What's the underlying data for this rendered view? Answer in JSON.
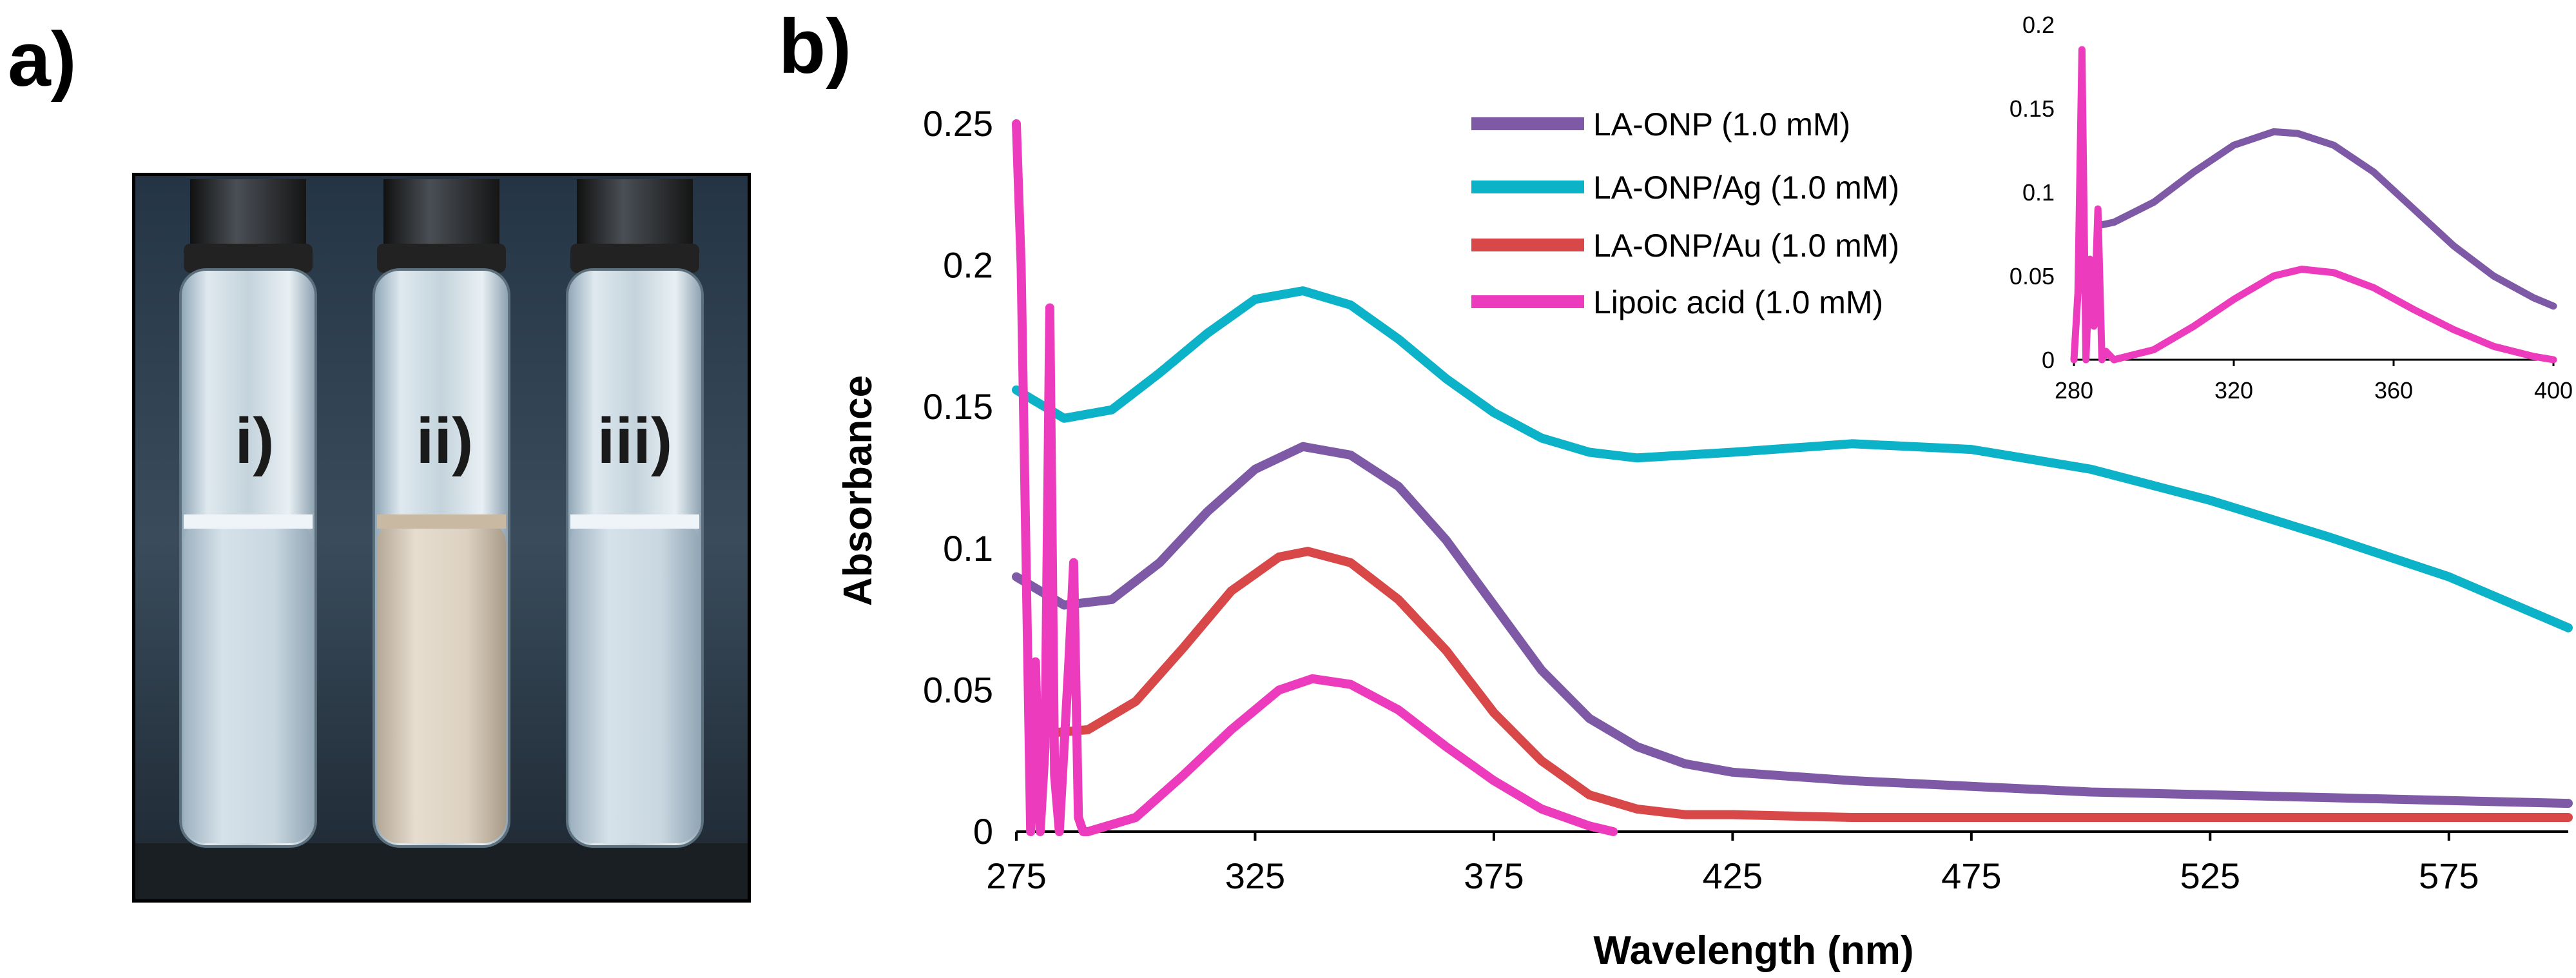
{
  "panel_a": {
    "label": "a)",
    "vials": [
      {
        "label": "i)"
      },
      {
        "label": "ii)"
      },
      {
        "label": "iii)"
      }
    ]
  },
  "panel_b": {
    "label": "b)"
  },
  "colors": {
    "LA-ONP": "#7e5aa6",
    "LA-ONP/Ag": "#0cb2c8",
    "LA-ONP/Au": "#d94848",
    "Lipoic acid": "#ec3bbd"
  },
  "chart_data": [
    {
      "type": "line",
      "title": "",
      "xlabel": "Wavelength (nm)",
      "ylabel": "Absorbance",
      "xlim": [
        275,
        600
      ],
      "ylim": [
        0,
        0.25
      ],
      "x_ticks": [
        "275",
        "325",
        "375",
        "425",
        "475",
        "525",
        "575"
      ],
      "y_ticks": [
        "0",
        "0.05",
        "0.1",
        "0.15",
        "0.2",
        "0.25"
      ],
      "legend": [
        "LA-ONP (1.0 mM)",
        "LA-ONP/Ag (1.0 mM)",
        "LA-ONP/Au  (1.0 mM)",
        "Lipoic acid (1.0 mM)"
      ],
      "legend_position": "top-center",
      "series": [
        {
          "name": "LA-ONP (1.0 mM)",
          "key": "LA-ONP",
          "x": [
            275,
            285,
            295,
            305,
            315,
            325,
            335,
            345,
            355,
            365,
            375,
            385,
            395,
            405,
            415,
            425,
            450,
            475,
            500,
            525,
            550,
            575,
            600
          ],
          "y": [
            0.09,
            0.08,
            0.082,
            0.095,
            0.113,
            0.128,
            0.136,
            0.133,
            0.122,
            0.103,
            0.08,
            0.057,
            0.04,
            0.03,
            0.024,
            0.021,
            0.018,
            0.016,
            0.014,
            0.013,
            0.012,
            0.011,
            0.01
          ]
        },
        {
          "name": "LA-ONP/Ag (1.0 mM)",
          "key": "LA-ONP/Ag",
          "x": [
            275,
            285,
            295,
            305,
            315,
            325,
            335,
            345,
            355,
            365,
            375,
            385,
            395,
            405,
            415,
            425,
            450,
            475,
            500,
            525,
            550,
            575,
            600
          ],
          "y": [
            0.156,
            0.146,
            0.149,
            0.162,
            0.176,
            0.188,
            0.191,
            0.186,
            0.174,
            0.16,
            0.148,
            0.139,
            0.134,
            0.132,
            0.133,
            0.134,
            0.137,
            0.135,
            0.128,
            0.117,
            0.104,
            0.09,
            0.072
          ]
        },
        {
          "name": "LA-ONP/Au  (1.0 mM)",
          "key": "LA-ONP/Au",
          "x": [
            283,
            290,
            300,
            310,
            320,
            330,
            336,
            345,
            355,
            365,
            375,
            385,
            395,
            405,
            415,
            425,
            450,
            475,
            500,
            525,
            550,
            575,
            600
          ],
          "y": [
            0.035,
            0.036,
            0.046,
            0.065,
            0.085,
            0.097,
            0.099,
            0.095,
            0.082,
            0.064,
            0.042,
            0.025,
            0.013,
            0.008,
            0.006,
            0.006,
            0.005,
            0.005,
            0.005,
            0.005,
            0.005,
            0.005,
            0.005
          ]
        },
        {
          "name": "Lipoic acid (1.0 mM)",
          "key": "Lipoic acid",
          "x": [
            275,
            276,
            277,
            278,
            279,
            280,
            281,
            282,
            283,
            284,
            285,
            286,
            287,
            288,
            289,
            290,
            300,
            310,
            320,
            330,
            337,
            345,
            355,
            365,
            375,
            385,
            395,
            400
          ],
          "y": [
            0.25,
            0.2,
            0.1,
            0.0,
            0.06,
            0.0,
            0.03,
            0.185,
            0.02,
            0.0,
            0.03,
            0.06,
            0.095,
            0.005,
            0.0,
            0.0,
            0.005,
            0.02,
            0.036,
            0.05,
            0.054,
            0.052,
            0.043,
            0.03,
            0.018,
            0.008,
            0.002,
            0.0
          ]
        }
      ]
    },
    {
      "type": "line",
      "title": "inset",
      "xlabel": "",
      "ylabel": "",
      "xlim": [
        280,
        400
      ],
      "ylim": [
        0,
        0.2
      ],
      "x_ticks": [
        "280",
        "320",
        "360",
        "400"
      ],
      "y_ticks": [
        "0",
        "0.05",
        "0.1",
        "0.15",
        "0.2"
      ],
      "series": [
        {
          "name": "LA-ONP (1.0 mM)",
          "key": "LA-ONP",
          "x": [
            286,
            290,
            300,
            310,
            320,
            330,
            336,
            345,
            355,
            365,
            375,
            385,
            395,
            400
          ],
          "y": [
            0.08,
            0.082,
            0.094,
            0.112,
            0.128,
            0.136,
            0.135,
            0.128,
            0.112,
            0.09,
            0.068,
            0.05,
            0.037,
            0.032
          ]
        },
        {
          "name": "Lipoic acid (1.0 mM)",
          "key": "Lipoic acid",
          "x": [
            280,
            281,
            282,
            283,
            284,
            285,
            286,
            287,
            288,
            290,
            300,
            310,
            320,
            330,
            337,
            345,
            355,
            365,
            375,
            385,
            395,
            400
          ],
          "y": [
            0.0,
            0.04,
            0.185,
            0.0,
            0.06,
            0.02,
            0.09,
            0.0,
            0.005,
            0.0,
            0.006,
            0.02,
            0.036,
            0.05,
            0.054,
            0.052,
            0.043,
            0.03,
            0.018,
            0.008,
            0.002,
            0.0
          ]
        }
      ]
    }
  ]
}
